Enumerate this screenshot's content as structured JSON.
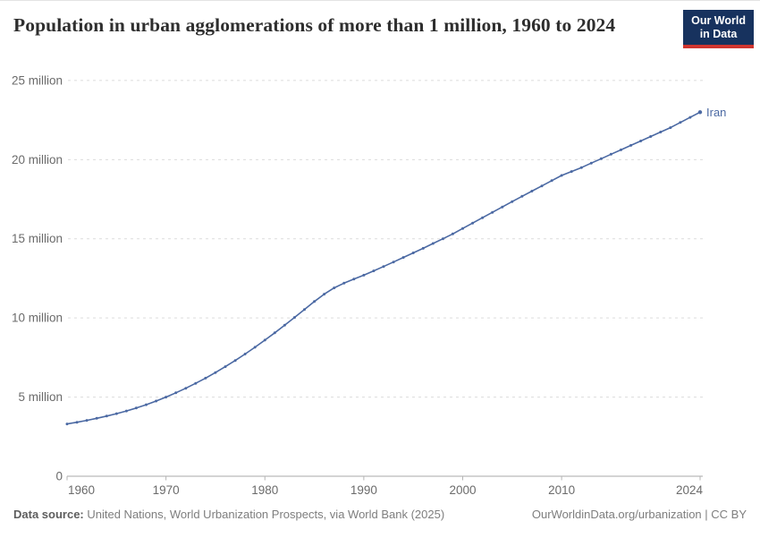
{
  "header": {
    "title": "Population in urban agglomerations of more than 1 million, 1960 to 2024",
    "logo": {
      "line1": "Our World",
      "line2": "in Data"
    }
  },
  "chart_data": {
    "type": "line",
    "title": "Population in urban agglomerations of more than 1 million, 1960 to 2024",
    "xlabel": "",
    "ylabel": "",
    "unit": "million people",
    "xlim": [
      1960,
      2024
    ],
    "ylim": [
      0,
      25
    ],
    "grid": "horizontal dashed",
    "legend_position": "end-of-line label",
    "x_ticks": [
      1960,
      1970,
      1980,
      1990,
      2000,
      2010,
      2024
    ],
    "y_ticks": [
      {
        "value": 0,
        "label": "0"
      },
      {
        "value": 5,
        "label": "5 million"
      },
      {
        "value": 10,
        "label": "10 million"
      },
      {
        "value": 15,
        "label": "15 million"
      },
      {
        "value": 20,
        "label": "20 million"
      },
      {
        "value": 25,
        "label": "25 million"
      }
    ],
    "series": [
      {
        "name": "Iran",
        "color": "#4b69a3",
        "x": [
          1960,
          1961,
          1962,
          1963,
          1964,
          1965,
          1966,
          1967,
          1968,
          1969,
          1970,
          1971,
          1972,
          1973,
          1974,
          1975,
          1976,
          1977,
          1978,
          1979,
          1980,
          1981,
          1982,
          1983,
          1984,
          1985,
          1986,
          1987,
          1988,
          1989,
          1990,
          1991,
          1992,
          1993,
          1994,
          1995,
          1996,
          1997,
          1998,
          1999,
          2000,
          2001,
          2002,
          2003,
          2004,
          2005,
          2006,
          2007,
          2008,
          2009,
          2010,
          2011,
          2012,
          2013,
          2014,
          2015,
          2016,
          2017,
          2018,
          2019,
          2020,
          2021,
          2022,
          2023,
          2024
        ],
        "values": [
          3.3,
          3.41,
          3.53,
          3.66,
          3.8,
          3.95,
          4.12,
          4.31,
          4.52,
          4.75,
          5.0,
          5.27,
          5.56,
          5.87,
          6.2,
          6.55,
          6.92,
          7.31,
          7.72,
          8.15,
          8.6,
          9.06,
          9.54,
          10.03,
          10.53,
          11.04,
          11.5,
          11.9,
          12.2,
          12.45,
          12.7,
          12.97,
          13.25,
          13.53,
          13.82,
          14.11,
          14.4,
          14.7,
          15.0,
          15.31,
          15.65,
          15.99,
          16.33,
          16.67,
          17.01,
          17.35,
          17.68,
          18.01,
          18.34,
          18.67,
          19.0,
          19.25,
          19.5,
          19.78,
          20.06,
          20.34,
          20.62,
          20.9,
          21.18,
          21.46,
          21.74,
          22.02,
          22.35,
          22.67,
          23.0
        ]
      }
    ]
  },
  "footer": {
    "source_label": "Data source:",
    "source_text": " United Nations, World Urbanization Prospects, via World Bank (2025)",
    "license_text": "OurWorldinData.org/urbanization | CC BY"
  },
  "colors": {
    "line": "#4b69a3",
    "logo_navy": "#17325e",
    "logo_red": "#d0352f",
    "gridline": "#dcdcdc",
    "axis": "#a9a9a9",
    "tick_label": "#6b6b6b"
  }
}
